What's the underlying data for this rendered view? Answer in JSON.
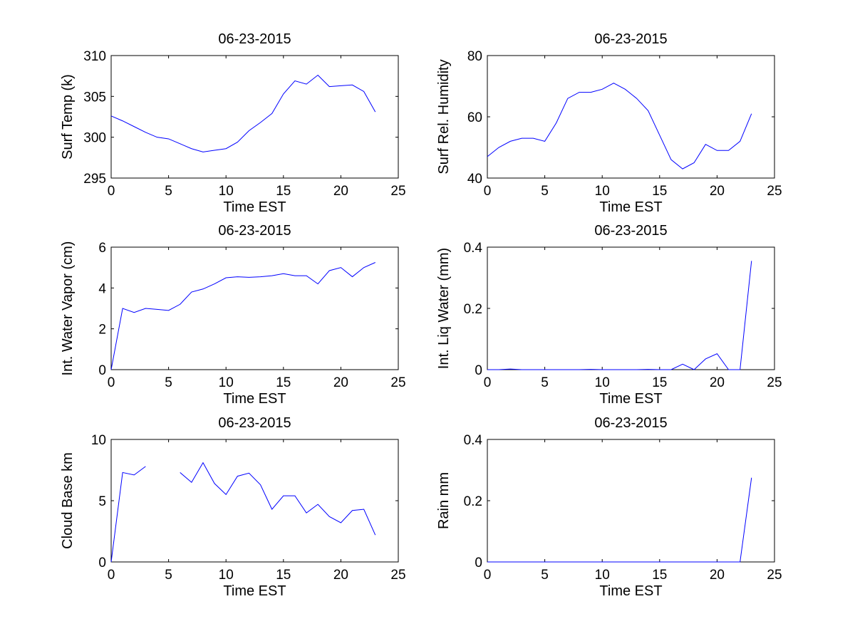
{
  "chart_data": [
    {
      "type": "line",
      "title": "06-23-2015",
      "xlabel": "Time EST",
      "ylabel": "Surf Temp (k)",
      "xlim": [
        0,
        25
      ],
      "ylim": [
        295,
        310
      ],
      "xticks": [
        0,
        5,
        10,
        15,
        20,
        25
      ],
      "yticks": [
        295,
        300,
        305,
        310
      ],
      "series": [
        {
          "name": "Surf Temp",
          "color": "#0000ff",
          "x": [
            0,
            1,
            2,
            3,
            4,
            5,
            6,
            7,
            8,
            9,
            10,
            11,
            12,
            13,
            14,
            15,
            16,
            17,
            18,
            19,
            20,
            21,
            22,
            23
          ],
          "y": [
            302.6,
            302.0,
            301.3,
            300.6,
            300.0,
            299.8,
            299.2,
            298.6,
            298.2,
            298.4,
            298.6,
            299.4,
            300.8,
            301.8,
            302.9,
            305.3,
            306.9,
            306.5,
            307.6,
            306.2,
            306.3,
            306.4,
            305.6,
            303.1
          ]
        }
      ]
    },
    {
      "type": "line",
      "title": "06-23-2015",
      "xlabel": "Time EST",
      "ylabel": "Surf Rel. Humidity",
      "xlim": [
        0,
        25
      ],
      "ylim": [
        40,
        80
      ],
      "xticks": [
        0,
        5,
        10,
        15,
        20,
        25
      ],
      "yticks": [
        40,
        60,
        80
      ],
      "series": [
        {
          "name": "Surf Rel. Humidity",
          "color": "#0000ff",
          "x": [
            0,
            1,
            2,
            3,
            4,
            5,
            6,
            7,
            8,
            9,
            10,
            11,
            12,
            13,
            14,
            15,
            16,
            17,
            18,
            19,
            20,
            21,
            22,
            23
          ],
          "y": [
            47,
            50,
            52,
            53,
            53,
            52,
            58,
            66,
            68,
            68,
            69,
            71,
            69,
            66,
            62,
            54,
            46,
            43,
            45,
            51,
            49,
            49,
            52,
            61
          ]
        }
      ]
    },
    {
      "type": "line",
      "title": "06-23-2015",
      "xlabel": "Time EST",
      "ylabel": "Int. Water Vapor (cm)",
      "xlim": [
        0,
        25
      ],
      "ylim": [
        0,
        6
      ],
      "xticks": [
        0,
        5,
        10,
        15,
        20,
        25
      ],
      "yticks": [
        0,
        2,
        4,
        6
      ],
      "series": [
        {
          "name": "Int. Water Vapor",
          "color": "#0000ff",
          "x": [
            0,
            1,
            2,
            3,
            4,
            5,
            6,
            7,
            8,
            9,
            10,
            11,
            12,
            13,
            14,
            15,
            16,
            17,
            18,
            19,
            20,
            21,
            22,
            23
          ],
          "y": [
            0,
            3.0,
            2.8,
            3.0,
            2.95,
            2.9,
            3.2,
            3.8,
            3.95,
            4.2,
            4.5,
            4.55,
            4.52,
            4.55,
            4.6,
            4.7,
            4.6,
            4.6,
            4.2,
            4.85,
            5.0,
            4.55,
            5.0,
            5.25
          ]
        }
      ]
    },
    {
      "type": "line",
      "title": "06-23-2015",
      "xlabel": "Time EST",
      "ylabel": "Int. Liq Water (mm)",
      "xlim": [
        0,
        25
      ],
      "ylim": [
        0,
        0.4
      ],
      "xticks": [
        0,
        5,
        10,
        15,
        20,
        25
      ],
      "yticks": [
        0,
        0.2,
        0.4
      ],
      "series": [
        {
          "name": "Int. Liq Water",
          "color": "#0000ff",
          "x": [
            0,
            1,
            2,
            3,
            4,
            5,
            6,
            7,
            8,
            9,
            10,
            11,
            12,
            13,
            14,
            15,
            16,
            17,
            18,
            19,
            20,
            21,
            22,
            23
          ],
          "y": [
            0,
            0,
            0.002,
            0,
            0,
            0,
            0,
            0,
            0,
            0.001,
            0,
            0,
            0,
            0,
            0.001,
            0,
            0,
            0.018,
            0,
            0.035,
            0.052,
            0,
            0,
            0.355
          ]
        }
      ]
    },
    {
      "type": "line",
      "title": "06-23-2015",
      "xlabel": "Time EST",
      "ylabel": "Cloud Base km",
      "xlim": [
        0,
        25
      ],
      "ylim": [
        0,
        10
      ],
      "xticks": [
        0,
        5,
        10,
        15,
        20,
        25
      ],
      "yticks": [
        0,
        5,
        10
      ],
      "series": [
        {
          "name": "Cloud Base",
          "color": "#0000ff",
          "x": [
            0,
            1,
            2,
            3,
            4,
            5,
            6,
            7,
            8,
            9,
            10,
            11,
            12,
            13,
            14,
            15,
            16,
            17,
            18,
            19,
            20,
            21,
            22,
            23
          ],
          "y": [
            0,
            7.3,
            7.1,
            7.8,
            null,
            null,
            7.3,
            6.5,
            8.1,
            6.4,
            5.5,
            7.0,
            7.25,
            6.3,
            4.3,
            5.4,
            5.4,
            4.0,
            4.7,
            3.7,
            3.2,
            4.2,
            4.3,
            2.2
          ]
        }
      ]
    },
    {
      "type": "line",
      "title": "06-23-2015",
      "xlabel": "Time EST",
      "ylabel": "Rain mm",
      "xlim": [
        0,
        25
      ],
      "ylim": [
        0,
        0.4
      ],
      "xticks": [
        0,
        5,
        10,
        15,
        20,
        25
      ],
      "yticks": [
        0,
        0.2,
        0.4
      ],
      "series": [
        {
          "name": "Rain",
          "color": "#0000ff",
          "x": [
            0,
            1,
            2,
            3,
            4,
            5,
            6,
            7,
            8,
            9,
            10,
            11,
            12,
            13,
            14,
            15,
            16,
            17,
            18,
            19,
            20,
            21,
            22,
            23
          ],
          "y": [
            0,
            0,
            0,
            0,
            0,
            0,
            0,
            0,
            0,
            0,
            0,
            0,
            0,
            0,
            0,
            0,
            0,
            0,
            0,
            0,
            0,
            0,
            0,
            0.275
          ]
        }
      ]
    }
  ]
}
